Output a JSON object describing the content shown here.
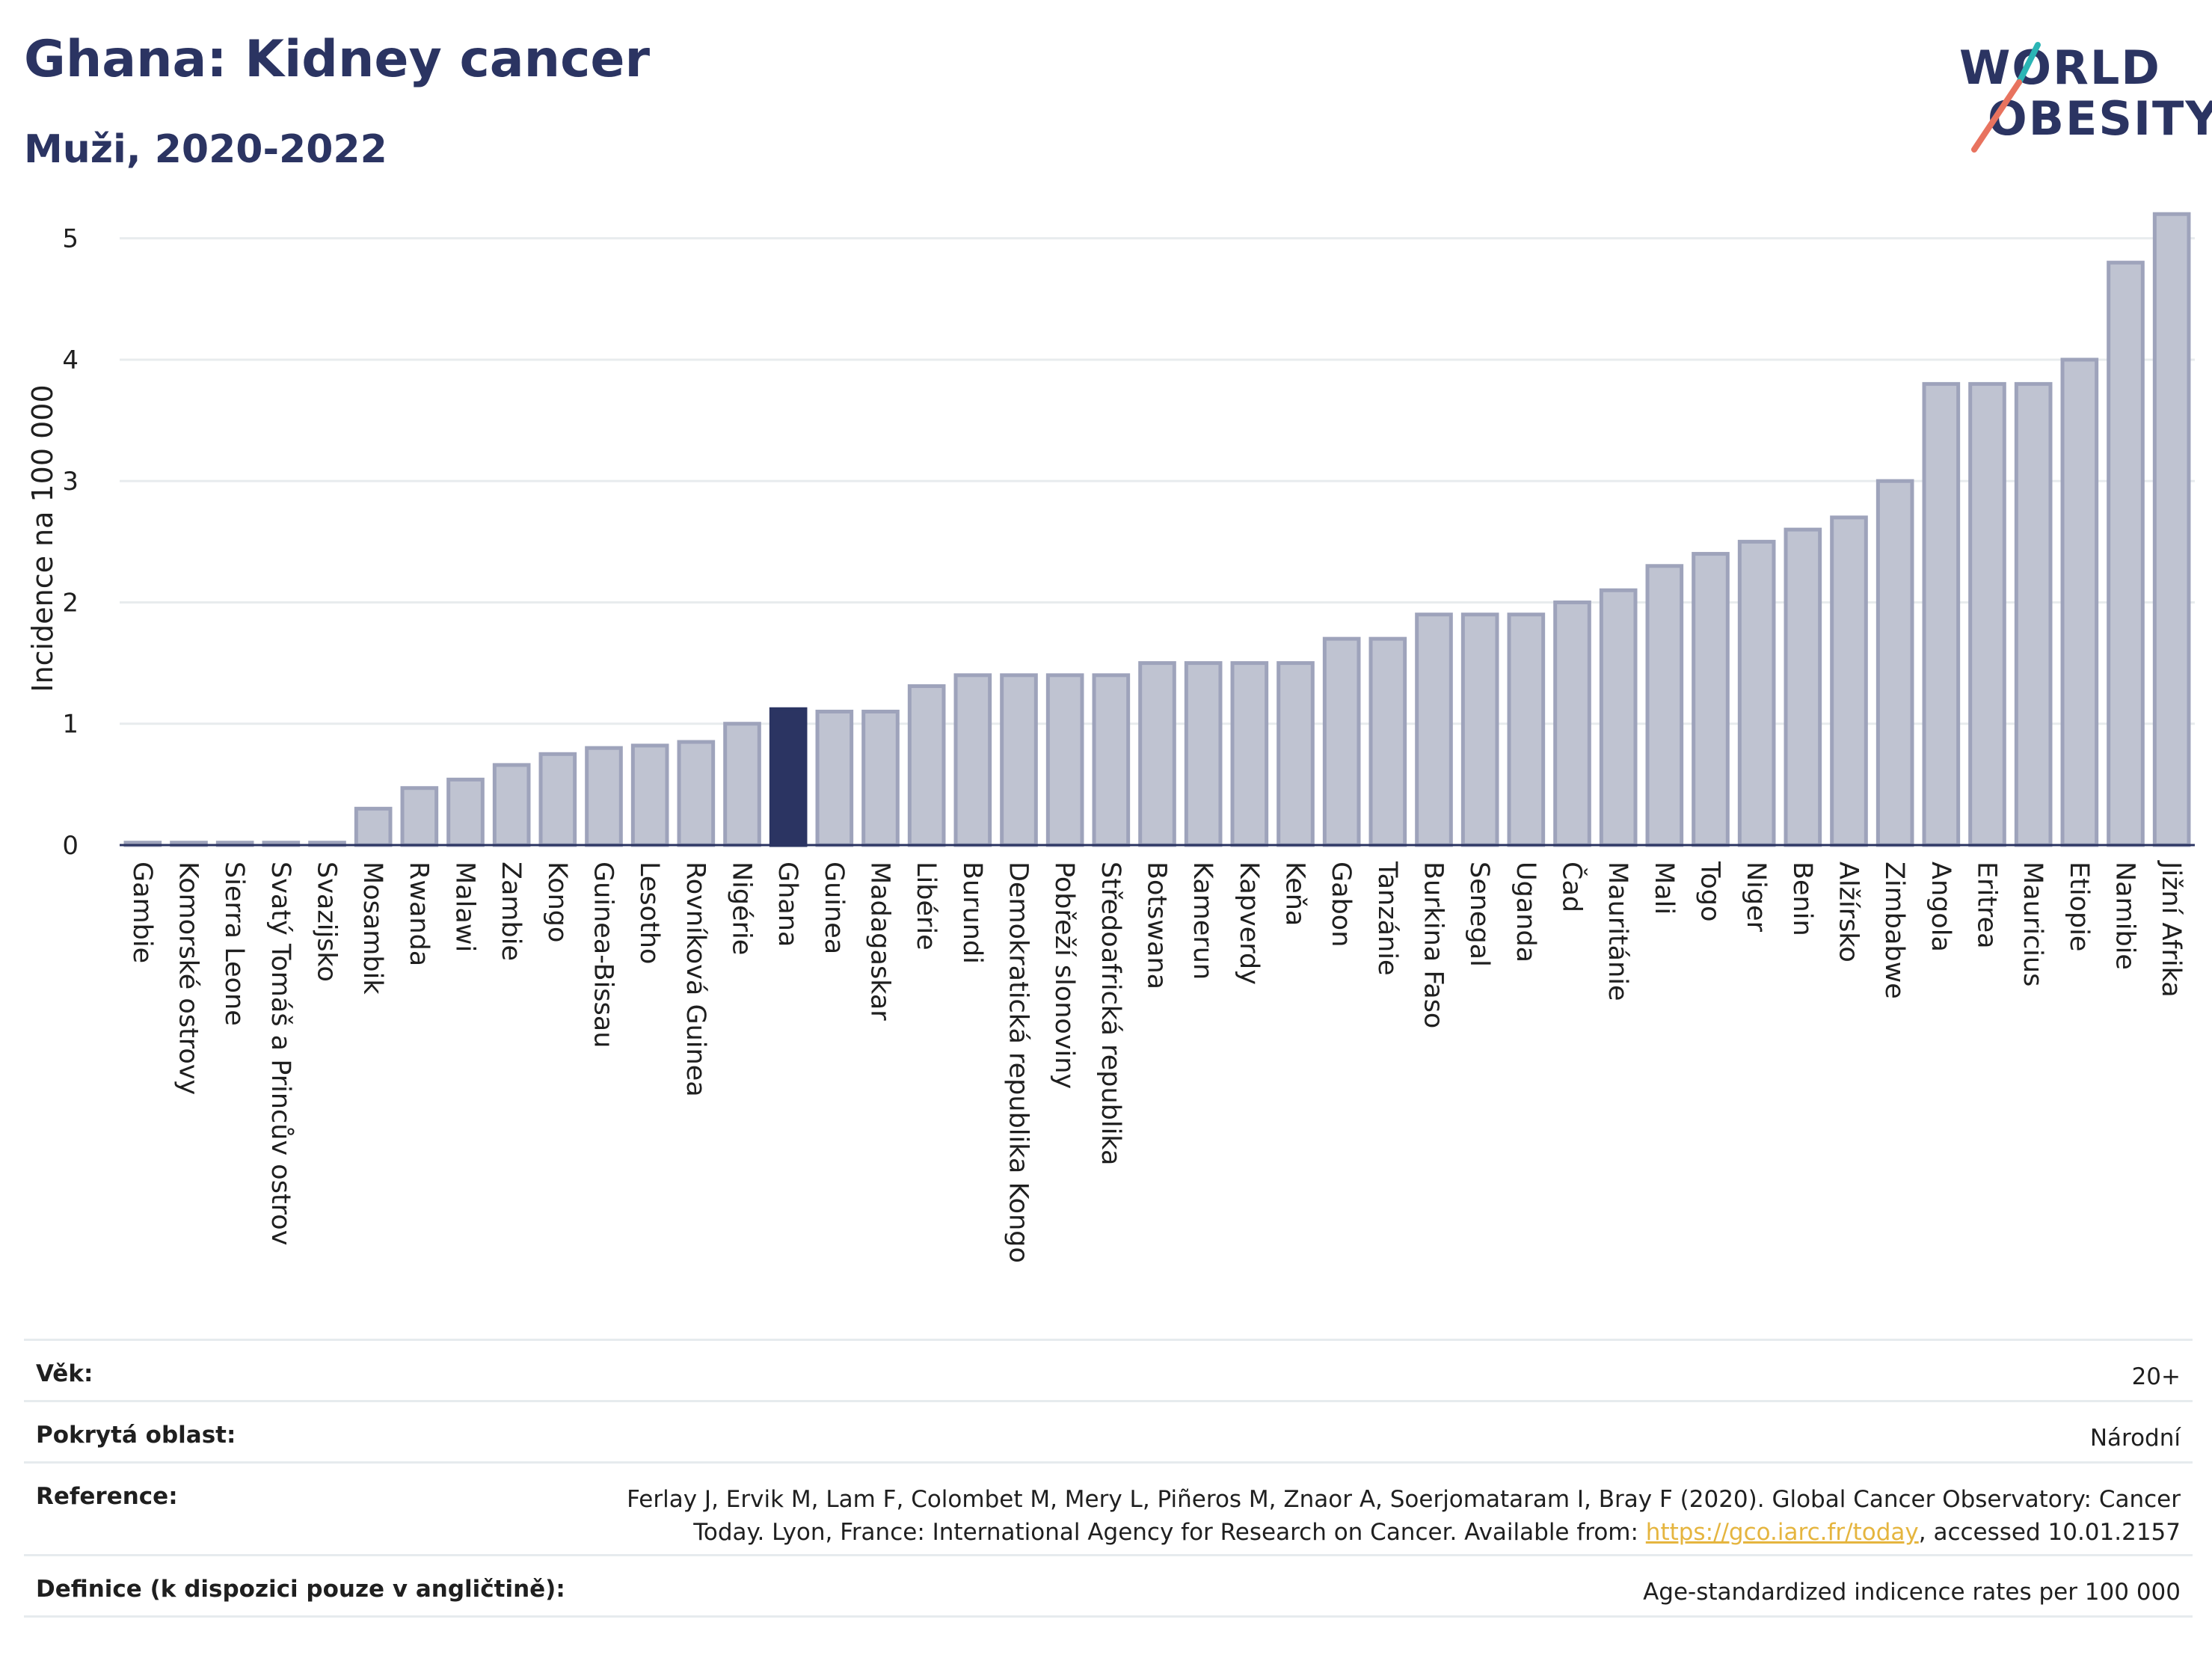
{
  "header": {
    "title": "Ghana: Kidney cancer",
    "subtitle": "Muži, 2020-2022"
  },
  "logo": {
    "line1": "WORLD",
    "line2": "OBESITY",
    "accent_colors": [
      "#2bb5b5",
      "#e8735f"
    ]
  },
  "colors": {
    "bar_default": "#bfc3d1",
    "bar_border": "#9ea3bb",
    "bar_highlight": "#2b3462",
    "text_dark": "#2b3462"
  },
  "chart_data": {
    "type": "bar",
    "title": "Ghana: Kidney cancer",
    "subtitle": "Muži, 2020-2022",
    "ylabel": "Incidence na 100 000",
    "xlabel": "",
    "ylim": [
      0,
      5.3
    ],
    "yticks": [
      0,
      1,
      2,
      3,
      4,
      5
    ],
    "grid": true,
    "highlight": "Ghana",
    "categories": [
      "Gambie",
      "Komorské ostrovy",
      "Sierra Leone",
      "Svatý Tomáš a Princův ostrov",
      "Svazijsko",
      "Mosambik",
      "Rwanda",
      "Malawi",
      "Zambie",
      "Kongo",
      "Guinea-Bissau",
      "Lesotho",
      "Rovníková Guinea",
      "Nigérie",
      "Ghana",
      "Guinea",
      "Madagaskar",
      "Libérie",
      "Burundi",
      "Demokratická republika Kongo",
      "Pobřeží slonoviny",
      "Středoafrická republika",
      "Botswana",
      "Kamerun",
      "Kapverdy",
      "Keňa",
      "Gabon",
      "Tanzánie",
      "Burkina Faso",
      "Senegal",
      "Uganda",
      "Čad",
      "Mauritánie",
      "Mali",
      "Togo",
      "Niger",
      "Benin",
      "Alžírsko",
      "Zimbabwe",
      "Angola",
      "Eritrea",
      "Mauricius",
      "Etiopie",
      "Namibie",
      "Jižní Afrika"
    ],
    "values": [
      0.02,
      0.02,
      0.02,
      0.02,
      0.02,
      0.3,
      0.47,
      0.54,
      0.66,
      0.75,
      0.8,
      0.82,
      0.85,
      1.0,
      1.12,
      1.1,
      1.1,
      1.31,
      1.4,
      1.4,
      1.4,
      1.4,
      1.5,
      1.5,
      1.5,
      1.5,
      1.7,
      1.7,
      1.9,
      1.9,
      1.9,
      2.0,
      2.1,
      2.3,
      2.4,
      2.5,
      2.6,
      2.7,
      3.0,
      3.8,
      3.8,
      3.8,
      4.0,
      4.8,
      5.2
    ]
  },
  "info": {
    "age_label": "Věk:",
    "age_value": "20+",
    "area_label": "Pokrytá oblast:",
    "area_value": "Národní",
    "ref_label": "Reference:",
    "ref_line1": "Ferlay J, Ervik M, Lam F, Colombet M, Mery L, Piñeros M, Znaor A, Soerjomataram I, Bray F (2020). Global Cancer Observatory: Cancer",
    "ref_line2_pre": "Today. Lyon, France: International Agency for Research on Cancer. Available from: ",
    "ref_link": "https://gco.iarc.fr/today",
    "ref_line2_post": ", accessed 10.01.2157",
    "def_label": "Definice (k dispozici pouze v angličtině):",
    "def_value": "Age-standardized indicence rates per 100 000"
  }
}
